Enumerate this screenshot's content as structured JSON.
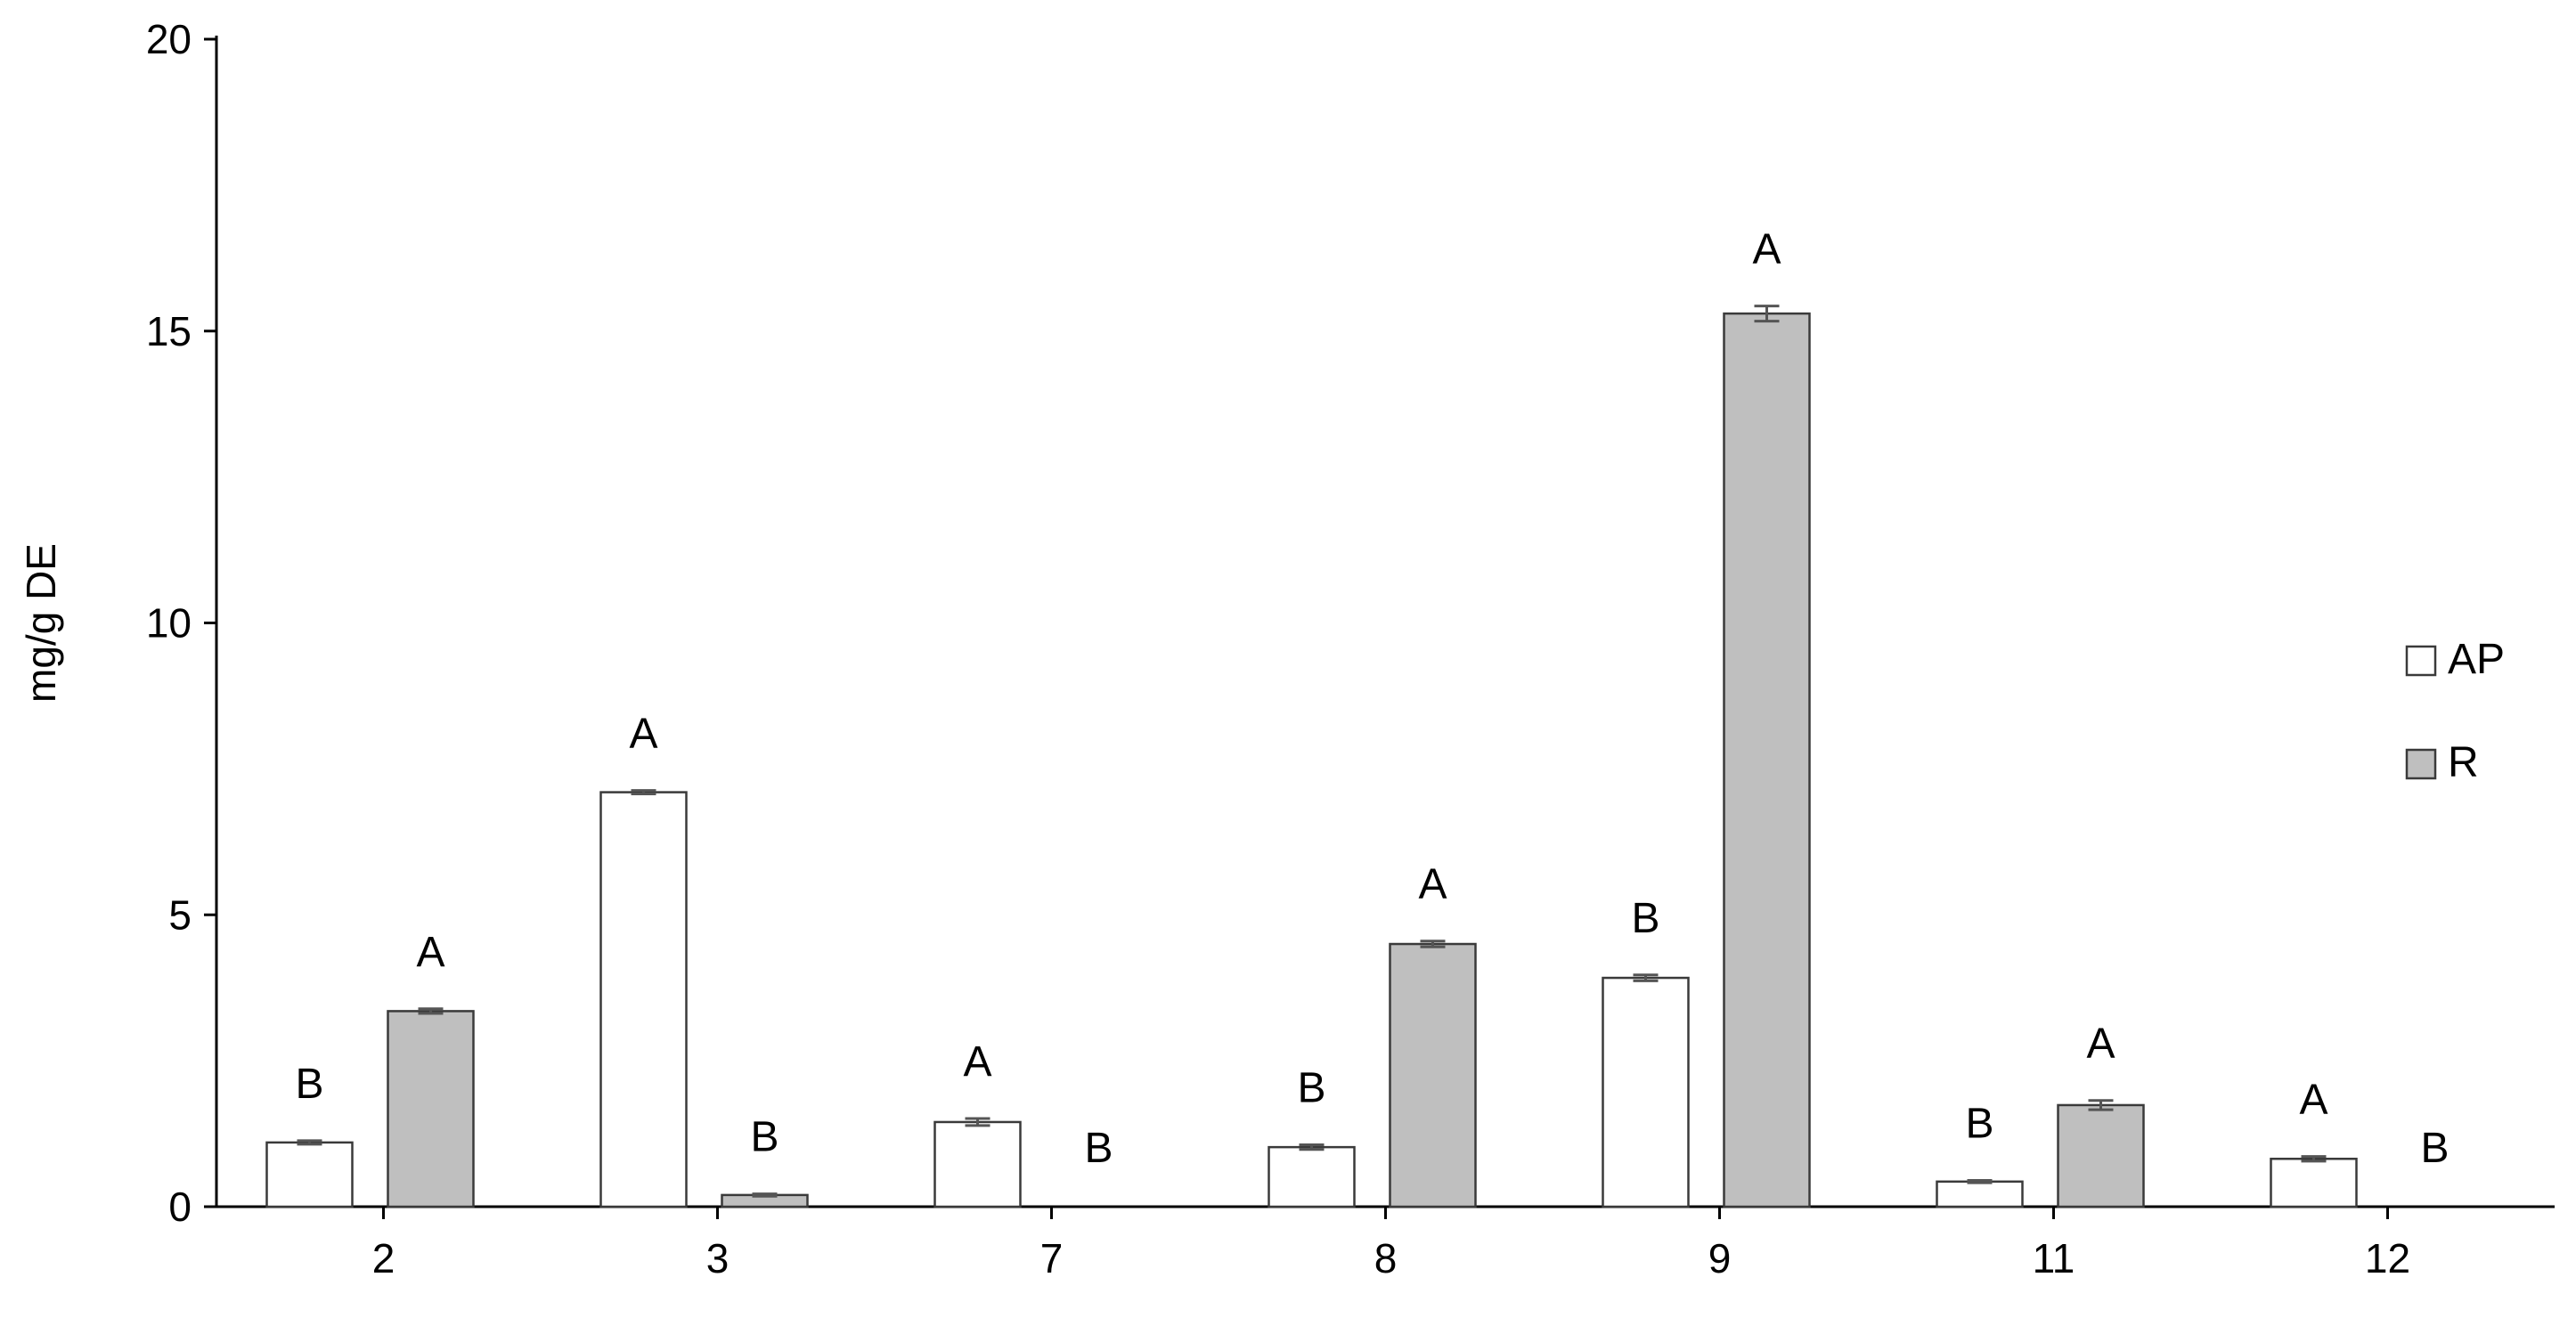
{
  "chart_data": {
    "type": "bar",
    "title": "",
    "xlabel": "",
    "ylabel": "mg/g DE",
    "ylim": [
      0,
      20
    ],
    "yticks": [
      0,
      5,
      10,
      15,
      20
    ],
    "grid": false,
    "legend_position": "right",
    "categories": [
      "2",
      "3",
      "7",
      "8",
      "9",
      "11",
      "12"
    ],
    "series": [
      {
        "name": "AP",
        "color": "#ffffff",
        "stroke": "#3a3a3a",
        "values": [
          1.1,
          7.1,
          1.45,
          1.02,
          3.92,
          0.43,
          0.82
        ],
        "errors": [
          0.03,
          0.03,
          0.06,
          0.04,
          0.05,
          0.02,
          0.04
        ],
        "letters": [
          "B",
          "A",
          "A",
          "B",
          "B",
          "B",
          "A"
        ]
      },
      {
        "name": "R",
        "color": "#bfbfbf",
        "stroke": "#3a3a3a",
        "values": [
          3.35,
          0.2,
          0,
          4.5,
          15.3,
          1.74,
          0
        ],
        "errors": [
          0.04,
          0.02,
          0,
          0.05,
          0.13,
          0.08,
          0
        ],
        "letters": [
          "A",
          "B",
          "B",
          "A",
          "A",
          "A",
          "B"
        ]
      }
    ]
  }
}
